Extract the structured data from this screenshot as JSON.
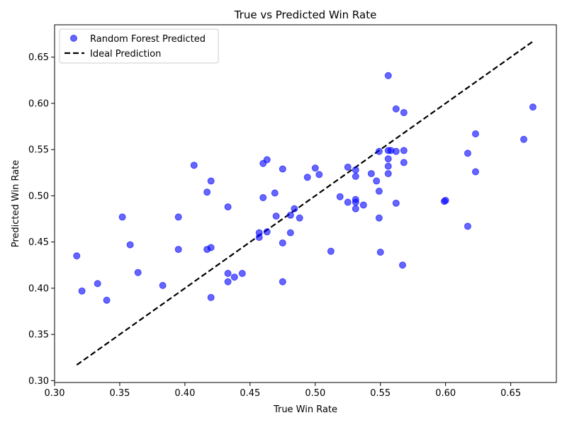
{
  "chart_data": {
    "type": "scatter",
    "title": "True vs Predicted Win Rate",
    "xlabel": "True Win Rate",
    "ylabel": "Predicted Win Rate",
    "xlim": [
      0.3,
      0.685
    ],
    "ylim": [
      0.298,
      0.685
    ],
    "xticks": [
      "0.30",
      "0.35",
      "0.40",
      "0.45",
      "0.50",
      "0.55",
      "0.60",
      "0.65"
    ],
    "yticks": [
      "0.30",
      "0.35",
      "0.40",
      "0.45",
      "0.50",
      "0.55",
      "0.60",
      "0.65"
    ],
    "grid": false,
    "legend_position": "top-left",
    "series": [
      {
        "name": "Random Forest Predicted",
        "kind": "scatter",
        "color": "#0000ff",
        "x": [
          0.317,
          0.321,
          0.333,
          0.34,
          0.352,
          0.358,
          0.364,
          0.383,
          0.395,
          0.395,
          0.407,
          0.417,
          0.417,
          0.42,
          0.42,
          0.42,
          0.433,
          0.433,
          0.433,
          0.438,
          0.444,
          0.457,
          0.457,
          0.46,
          0.46,
          0.463,
          0.463,
          0.469,
          0.47,
          0.475,
          0.475,
          0.475,
          0.481,
          0.481,
          0.484,
          0.488,
          0.494,
          0.5,
          0.503,
          0.512,
          0.519,
          0.525,
          0.525,
          0.531,
          0.531,
          0.531,
          0.531,
          0.531,
          0.537,
          0.543,
          0.547,
          0.549,
          0.549,
          0.549,
          0.55,
          0.556,
          0.556,
          0.556,
          0.556,
          0.556,
          0.558,
          0.562,
          0.562,
          0.562,
          0.567,
          0.568,
          0.568,
          0.568,
          0.599,
          0.6,
          0.617,
          0.617,
          0.623,
          0.623,
          0.66,
          0.667
        ],
        "y": [
          0.435,
          0.397,
          0.405,
          0.387,
          0.477,
          0.447,
          0.417,
          0.403,
          0.477,
          0.442,
          0.533,
          0.504,
          0.442,
          0.516,
          0.444,
          0.39,
          0.488,
          0.416,
          0.407,
          0.412,
          0.416,
          0.46,
          0.455,
          0.535,
          0.498,
          0.539,
          0.461,
          0.503,
          0.478,
          0.529,
          0.449,
          0.407,
          0.479,
          0.46,
          0.486,
          0.476,
          0.52,
          0.53,
          0.523,
          0.44,
          0.499,
          0.531,
          0.493,
          0.528,
          0.521,
          0.496,
          0.493,
          0.486,
          0.49,
          0.524,
          0.516,
          0.548,
          0.505,
          0.476,
          0.439,
          0.63,
          0.54,
          0.532,
          0.524,
          0.549,
          0.549,
          0.594,
          0.548,
          0.492,
          0.425,
          0.59,
          0.549,
          0.536,
          0.494,
          0.495,
          0.546,
          0.467,
          0.567,
          0.526,
          0.561,
          0.596
        ]
      },
      {
        "name": "Ideal Prediction",
        "kind": "line",
        "color": "#000000",
        "style": "dashed",
        "x": [
          0.317,
          0.667
        ],
        "y": [
          0.317,
          0.667
        ]
      }
    ]
  }
}
